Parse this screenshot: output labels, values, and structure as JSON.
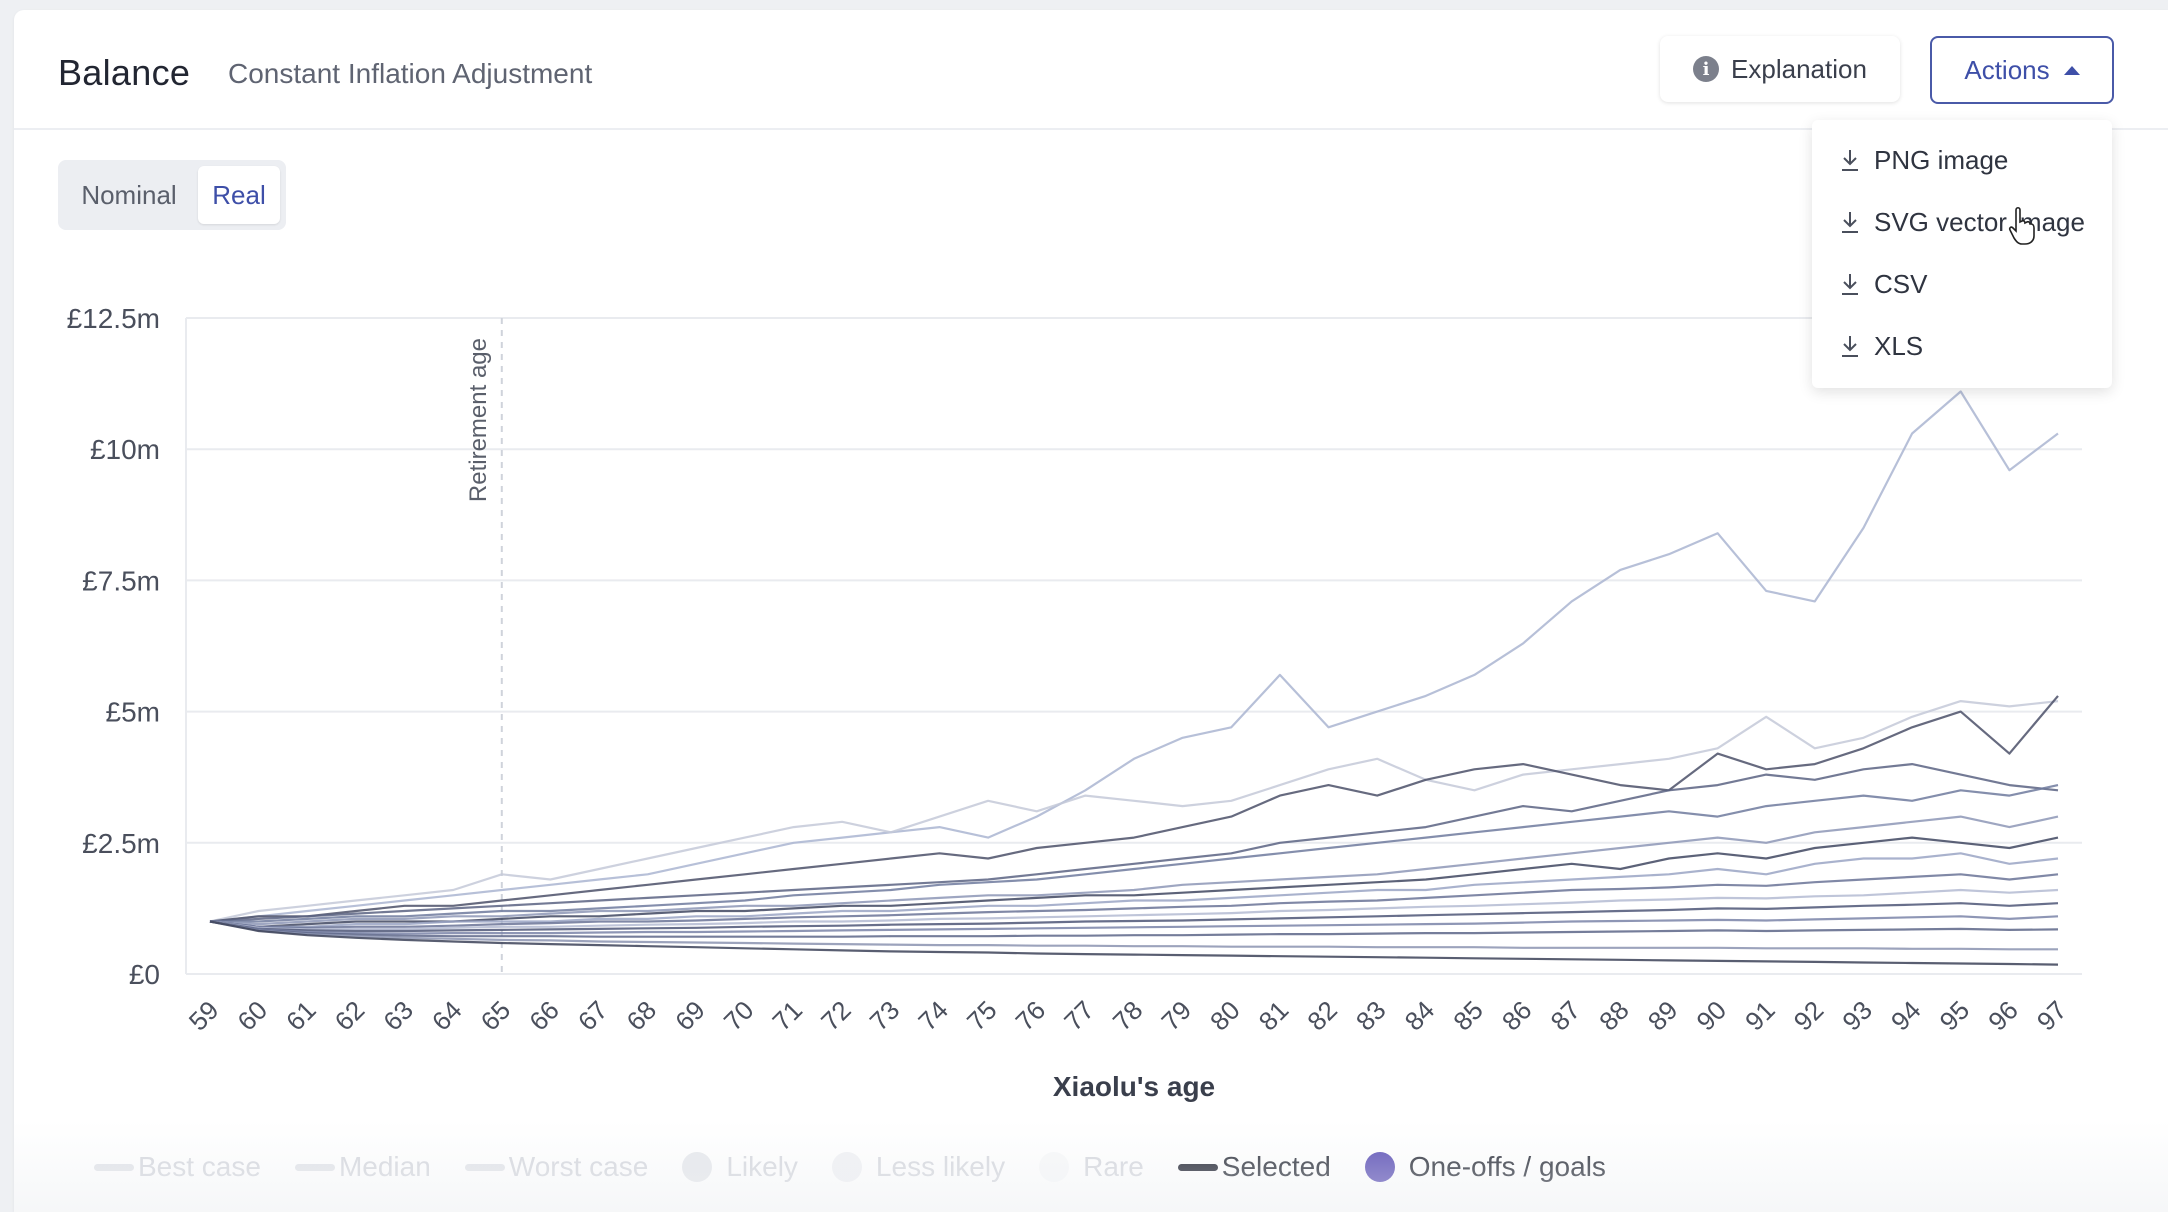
{
  "header": {
    "title": "Balance",
    "subtitle": "Constant Inflation Adjustment",
    "explanation_label": "Explanation",
    "actions_label": "Actions"
  },
  "toggle": {
    "nominal": "Nominal",
    "real": "Real",
    "selected": "Real"
  },
  "actions_menu": {
    "items": [
      "PNG image",
      "SVG vector image",
      "CSV",
      "XLS"
    ]
  },
  "legend": {
    "items": [
      {
        "label": "Best case",
        "kind": "line",
        "muted": true
      },
      {
        "label": "Median",
        "kind": "line",
        "muted": true
      },
      {
        "label": "Worst case",
        "kind": "line",
        "muted": true
      },
      {
        "label": "Likely",
        "kind": "dot",
        "muted": true
      },
      {
        "label": "Less likely",
        "kind": "dot",
        "muted": true
      },
      {
        "label": "Rare",
        "kind": "dot",
        "muted": true
      },
      {
        "label": "Selected",
        "kind": "line",
        "muted": false
      },
      {
        "label": "One-offs / goals",
        "kind": "dot",
        "muted": false
      }
    ]
  },
  "colors": {
    "accent": "#3e4fa8",
    "series_dark": "#4b5068",
    "series_mid": "#6e7a9e",
    "series_light": "#aab5d1",
    "goal_dot": "#5b4fb5",
    "selected": "#1f2230"
  },
  "chart_data": {
    "type": "line",
    "xlabel": "Xiaolu's age",
    "ylabel": "",
    "x": [
      59,
      60,
      61,
      62,
      63,
      64,
      65,
      66,
      67,
      68,
      69,
      70,
      71,
      72,
      73,
      74,
      75,
      76,
      77,
      78,
      79,
      80,
      81,
      82,
      83,
      84,
      85,
      86,
      87,
      88,
      89,
      90,
      91,
      92,
      93,
      94,
      95,
      96,
      97
    ],
    "ylim": [
      0,
      12.5
    ],
    "y_unit": "£m",
    "yticks": [
      0,
      2.5,
      5,
      7.5,
      10,
      12.5
    ],
    "ytick_labels": [
      "£0",
      "£2.5m",
      "£5m",
      "£7.5m",
      "£10m",
      "£12.5m"
    ],
    "annotations": [
      {
        "x": 65,
        "text": "Retirement age"
      }
    ],
    "grid": true,
    "series": [
      {
        "values": [
          1.0,
          1.1,
          1.2,
          1.3,
          1.4,
          1.5,
          1.6,
          1.7,
          1.8,
          1.9,
          2.1,
          2.3,
          2.5,
          2.6,
          2.7,
          2.8,
          2.6,
          3.0,
          3.5,
          4.1,
          4.5,
          4.7,
          5.7,
          4.7,
          5.0,
          5.3,
          5.7,
          6.3,
          7.1,
          7.7,
          8.0,
          8.4,
          7.3,
          7.1,
          8.5,
          10.3,
          11.1,
          9.6,
          10.3
        ]
      },
      {
        "values": [
          1.0,
          1.2,
          1.3,
          1.4,
          1.5,
          1.6,
          1.9,
          1.8,
          2.0,
          2.2,
          2.4,
          2.6,
          2.8,
          2.9,
          2.7,
          3.0,
          3.3,
          3.1,
          3.4,
          3.3,
          3.2,
          3.3,
          3.6,
          3.9,
          4.1,
          3.7,
          3.5,
          3.8,
          3.9,
          4.0,
          4.1,
          4.3,
          4.9,
          4.3,
          4.5,
          4.9,
          5.2,
          5.1,
          5.2
        ]
      },
      {
        "values": [
          1.0,
          1.1,
          1.1,
          1.2,
          1.3,
          1.3,
          1.4,
          1.5,
          1.6,
          1.7,
          1.8,
          1.9,
          2.0,
          2.1,
          2.2,
          2.3,
          2.2,
          2.4,
          2.5,
          2.6,
          2.8,
          3.0,
          3.4,
          3.6,
          3.4,
          3.7,
          3.9,
          4.0,
          3.8,
          3.6,
          3.5,
          4.2,
          3.9,
          4.0,
          4.3,
          4.7,
          5.0,
          4.2,
          5.3
        ]
      },
      {
        "values": [
          1.0,
          1.05,
          1.1,
          1.15,
          1.2,
          1.25,
          1.3,
          1.35,
          1.4,
          1.45,
          1.5,
          1.55,
          1.6,
          1.65,
          1.7,
          1.75,
          1.8,
          1.9,
          2.0,
          2.1,
          2.2,
          2.3,
          2.5,
          2.6,
          2.7,
          2.8,
          3.0,
          3.2,
          3.1,
          3.3,
          3.5,
          3.6,
          3.8,
          3.7,
          3.9,
          4.0,
          3.8,
          3.6,
          3.5
        ]
      },
      {
        "values": [
          1.0,
          1.0,
          1.05,
          1.1,
          1.1,
          1.15,
          1.2,
          1.2,
          1.25,
          1.3,
          1.35,
          1.4,
          1.5,
          1.55,
          1.6,
          1.7,
          1.75,
          1.8,
          1.9,
          2.0,
          2.1,
          2.2,
          2.3,
          2.4,
          2.5,
          2.6,
          2.7,
          2.8,
          2.9,
          3.0,
          3.1,
          3.0,
          3.2,
          3.3,
          3.4,
          3.3,
          3.5,
          3.4,
          3.6
        ]
      },
      {
        "values": [
          1.0,
          0.95,
          1.0,
          1.05,
          1.05,
          1.1,
          1.1,
          1.15,
          1.2,
          1.2,
          1.25,
          1.3,
          1.3,
          1.35,
          1.4,
          1.45,
          1.5,
          1.5,
          1.55,
          1.6,
          1.7,
          1.75,
          1.8,
          1.85,
          1.9,
          2.0,
          2.1,
          2.2,
          2.3,
          2.4,
          2.5,
          2.6,
          2.5,
          2.7,
          2.8,
          2.9,
          3.0,
          2.8,
          3.0
        ]
      },
      {
        "values": [
          1.0,
          0.9,
          0.95,
          1.0,
          1.0,
          1.0,
          1.05,
          1.1,
          1.1,
          1.15,
          1.2,
          1.2,
          1.25,
          1.3,
          1.3,
          1.35,
          1.4,
          1.45,
          1.5,
          1.5,
          1.55,
          1.6,
          1.65,
          1.7,
          1.75,
          1.8,
          1.9,
          2.0,
          2.1,
          2.0,
          2.2,
          2.3,
          2.2,
          2.4,
          2.5,
          2.6,
          2.5,
          2.4,
          2.6
        ]
      },
      {
        "values": [
          1.0,
          0.9,
          0.9,
          0.95,
          0.95,
          1.0,
          1.0,
          1.0,
          1.05,
          1.05,
          1.1,
          1.1,
          1.15,
          1.2,
          1.2,
          1.25,
          1.3,
          1.3,
          1.35,
          1.4,
          1.4,
          1.45,
          1.5,
          1.55,
          1.6,
          1.6,
          1.7,
          1.75,
          1.8,
          1.85,
          1.9,
          2.0,
          1.9,
          2.1,
          2.2,
          2.2,
          2.3,
          2.1,
          2.2
        ]
      },
      {
        "values": [
          1.0,
          0.9,
          0.88,
          0.9,
          0.9,
          0.92,
          0.95,
          0.97,
          1.0,
          1.0,
          1.02,
          1.05,
          1.08,
          1.1,
          1.12,
          1.15,
          1.18,
          1.2,
          1.22,
          1.25,
          1.28,
          1.3,
          1.35,
          1.38,
          1.4,
          1.45,
          1.5,
          1.55,
          1.6,
          1.62,
          1.65,
          1.7,
          1.68,
          1.75,
          1.8,
          1.85,
          1.9,
          1.8,
          1.9
        ]
      },
      {
        "values": [
          1.0,
          0.88,
          0.85,
          0.86,
          0.86,
          0.88,
          0.9,
          0.9,
          0.92,
          0.94,
          0.95,
          0.97,
          1.0,
          1.0,
          1.02,
          1.05,
          1.06,
          1.08,
          1.1,
          1.12,
          1.14,
          1.16,
          1.2,
          1.22,
          1.25,
          1.28,
          1.3,
          1.33,
          1.36,
          1.4,
          1.42,
          1.45,
          1.44,
          1.48,
          1.5,
          1.55,
          1.6,
          1.55,
          1.6
        ]
      },
      {
        "values": [
          1.0,
          0.86,
          0.83,
          0.82,
          0.82,
          0.83,
          0.84,
          0.85,
          0.86,
          0.87,
          0.88,
          0.9,
          0.91,
          0.92,
          0.94,
          0.95,
          0.96,
          0.98,
          1.0,
          1.01,
          1.02,
          1.04,
          1.06,
          1.08,
          1.1,
          1.12,
          1.14,
          1.16,
          1.18,
          1.2,
          1.22,
          1.25,
          1.24,
          1.27,
          1.3,
          1.32,
          1.35,
          1.3,
          1.35
        ]
      },
      {
        "values": [
          1.0,
          0.85,
          0.8,
          0.78,
          0.77,
          0.78,
          0.78,
          0.78,
          0.79,
          0.8,
          0.8,
          0.81,
          0.82,
          0.83,
          0.84,
          0.85,
          0.86,
          0.87,
          0.88,
          0.89,
          0.9,
          0.91,
          0.92,
          0.93,
          0.94,
          0.95,
          0.96,
          0.98,
          1.0,
          1.01,
          1.02,
          1.03,
          1.02,
          1.04,
          1.06,
          1.08,
          1.1,
          1.05,
          1.1
        ]
      },
      {
        "values": [
          1.0,
          0.84,
          0.78,
          0.75,
          0.73,
          0.72,
          0.72,
          0.72,
          0.71,
          0.71,
          0.71,
          0.71,
          0.71,
          0.71,
          0.72,
          0.72,
          0.72,
          0.73,
          0.73,
          0.74,
          0.74,
          0.75,
          0.76,
          0.76,
          0.77,
          0.78,
          0.78,
          0.79,
          0.8,
          0.81,
          0.82,
          0.83,
          0.82,
          0.83,
          0.84,
          0.85,
          0.86,
          0.84,
          0.85
        ]
      },
      {
        "values": [
          1.0,
          0.83,
          0.76,
          0.72,
          0.69,
          0.67,
          0.65,
          0.64,
          0.62,
          0.61,
          0.6,
          0.59,
          0.58,
          0.57,
          0.56,
          0.55,
          0.55,
          0.54,
          0.54,
          0.53,
          0.53,
          0.52,
          0.52,
          0.52,
          0.51,
          0.51,
          0.51,
          0.5,
          0.5,
          0.5,
          0.5,
          0.5,
          0.49,
          0.49,
          0.49,
          0.48,
          0.48,
          0.47,
          0.47
        ]
      },
      {
        "values": [
          1.0,
          0.82,
          0.74,
          0.69,
          0.65,
          0.62,
          0.59,
          0.57,
          0.55,
          0.53,
          0.51,
          0.49,
          0.47,
          0.45,
          0.43,
          0.42,
          0.41,
          0.39,
          0.38,
          0.37,
          0.36,
          0.35,
          0.34,
          0.33,
          0.32,
          0.31,
          0.3,
          0.29,
          0.28,
          0.27,
          0.26,
          0.25,
          0.24,
          0.23,
          0.22,
          0.21,
          0.2,
          0.19,
          0.18
        ]
      }
    ]
  }
}
